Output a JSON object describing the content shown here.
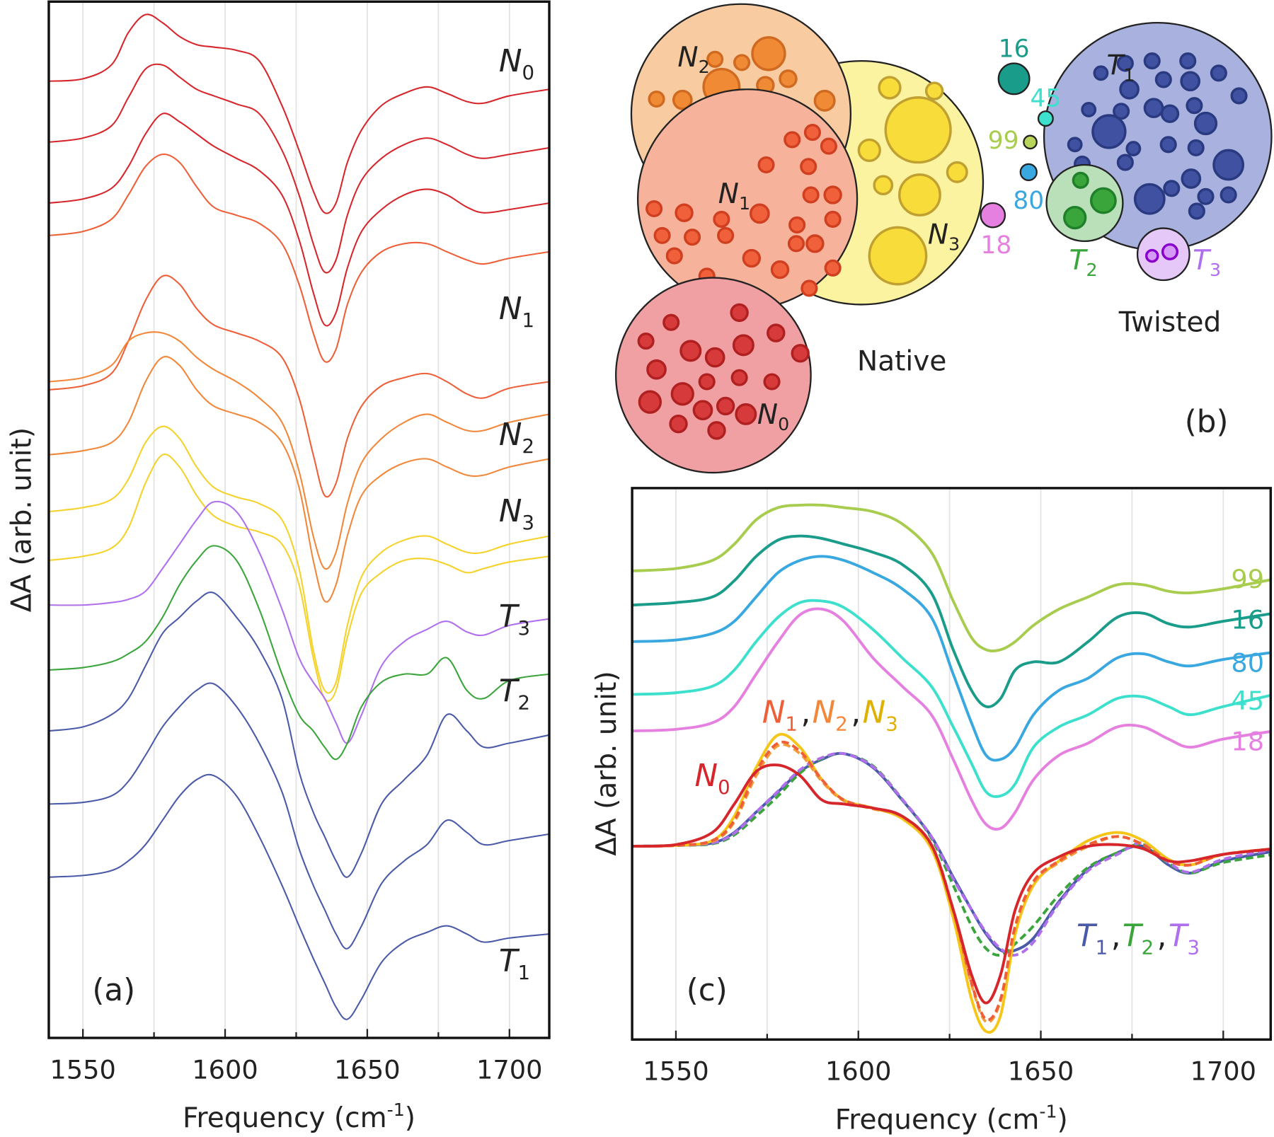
{
  "chart_data": [
    {
      "type": "line",
      "panel_label": "(a)",
      "ylabel": "ΔA (arb. unit)",
      "xlabel": [
        "Frequency (cm",
        "-1",
        ")"
      ],
      "xlim": [
        1538,
        1714
      ],
      "xticks": [
        1550,
        1600,
        1650,
        1700
      ],
      "minor_xticks": [
        1575,
        1625,
        1675
      ],
      "ylim": [
        0,
        1276
      ],
      "grid": true,
      "x": [
        1538,
        1550,
        1560,
        1566,
        1572,
        1578,
        1584,
        1590,
        1596,
        1604,
        1612,
        1620,
        1626,
        1631,
        1635,
        1639,
        1643,
        1648,
        1655,
        1663,
        1671,
        1678,
        1685,
        1691,
        1700,
        1714
      ],
      "series": [
        {
          "color": "#d7262b",
          "values": [
            1178,
            1181,
            1198,
            1238,
            1260,
            1250,
            1233,
            1223,
            1220,
            1216,
            1203,
            1148,
            1093,
            1043,
            1016,
            1028,
            1078,
            1118,
            1148,
            1163,
            1171,
            1163,
            1153,
            1151,
            1160,
            1168
          ]
        },
        {
          "color": "#d7262b",
          "values": [
            1103,
            1108,
            1123,
            1158,
            1193,
            1198,
            1183,
            1168,
            1160,
            1150,
            1138,
            1093,
            1038,
            978,
            943,
            958,
            1013,
            1056,
            1083,
            1100,
            1108,
            1100,
            1088,
            1083,
            1088,
            1096
          ]
        },
        {
          "color": "#d7262b",
          "values": [
            1028,
            1033,
            1046,
            1073,
            1113,
            1138,
            1128,
            1113,
            1098,
            1083,
            1068,
            1038,
            983,
            918,
            878,
            893,
            948,
            993,
            1020,
            1038,
            1045,
            1038,
            1023,
            1016,
            1020,
            1028
          ]
        },
        {
          "color": "#ee5f38",
          "values": [
            988,
            993,
            1008,
            1038,
            1073,
            1088,
            1078,
            1048,
            1023,
            1013,
            1003,
            978,
            928,
            868,
            833,
            848,
            903,
            943,
            968,
            978,
            978,
            968,
            958,
            953,
            960,
            968
          ]
        },
        {
          "color": "#ee5f38",
          "values": [
            798,
            803,
            818,
            858,
            908,
            938,
            928,
            898,
            878,
            868,
            858,
            838,
            788,
            718,
            668,
            683,
            738,
            778,
            803,
            813,
            818,
            808,
            793,
            788,
            800,
            808
          ]
        },
        {
          "color": "#f2873a",
          "values": [
            808,
            813,
            828,
            858,
            868,
            868,
            858,
            838,
            823,
            808,
            788,
            758,
            698,
            618,
            578,
            598,
            658,
            708,
            738,
            758,
            768,
            758,
            748,
            748,
            758,
            768
          ]
        },
        {
          "color": "#f2873a",
          "values": [
            718,
            723,
            733,
            758,
            808,
            838,
            828,
            798,
            778,
            768,
            758,
            733,
            678,
            588,
            538,
            558,
            618,
            668,
            693,
            708,
            713,
            703,
            693,
            693,
            703,
            713
          ]
        },
        {
          "color": "#f5d22a",
          "values": [
            648,
            653,
            663,
            688,
            733,
            753,
            738,
            703,
            678,
            666,
            658,
            638,
            578,
            478,
            428,
            438,
            508,
            568,
            598,
            613,
            618,
            608,
            598,
            598,
            608,
            618
          ]
        },
        {
          "color": "#f5d22a",
          "values": [
            588,
            593,
            603,
            628,
            683,
            718,
            703,
            668,
            643,
            630,
            623,
            608,
            558,
            468,
            418,
            428,
            493,
            548,
            573,
            588,
            590,
            583,
            573,
            578,
            586,
            593
          ]
        },
        {
          "color": "#b070ee",
          "values": [
            533,
            533,
            536,
            540,
            550,
            578,
            608,
            638,
            660,
            648,
            598,
            528,
            468,
            438,
            418,
            388,
            363,
            398,
            458,
            488,
            503,
            513,
            500,
            496,
            508,
            516
          ]
        },
        {
          "color": "#3aa53a",
          "values": [
            453,
            456,
            463,
            473,
            488,
            518,
            558,
            588,
            606,
            588,
            528,
            448,
            398,
            378,
            358,
            343,
            363,
            408,
            438,
            448,
            448,
            468,
            428,
            418,
            440,
            448
          ]
        },
        {
          "color": "#4a5aa8",
          "values": [
            378,
            383,
            398,
            418,
            458,
            498,
            518,
            538,
            548,
            518,
            478,
            418,
            328,
            278,
            248,
            218,
            198,
            228,
            288,
            318,
            348,
            398,
            378,
            358,
            363,
            373
          ]
        },
        {
          "color": "#4a5aa8",
          "values": [
            288,
            290,
            298,
            316,
            348,
            383,
            408,
            428,
            436,
            408,
            363,
            303,
            233,
            188,
            158,
            128,
            110,
            138,
            190,
            218,
            238,
            268,
            253,
            238,
            243,
            251
          ]
        },
        {
          "color": "#4a5aa8",
          "values": [
            198,
            200,
            206,
            218,
            238,
            268,
            298,
            318,
            323,
            298,
            248,
            188,
            138,
            98,
            68,
            38,
            23,
            48,
            93,
            118,
            130,
            138,
            128,
            118,
            123,
            128
          ]
        }
      ],
      "annotations": [
        {
          "items": [
            {
              "text": "N",
              "subscript": "0"
            }
          ]
        },
        {
          "items": [
            {
              "text": "N",
              "subscript": "1"
            }
          ]
        },
        {
          "items": [
            {
              "text": "N",
              "subscript": "2"
            }
          ]
        },
        {
          "items": [
            {
              "text": "N",
              "subscript": "3"
            }
          ]
        },
        {
          "items": [
            {
              "text": "T",
              "subscript": "3"
            }
          ]
        },
        {
          "items": [
            {
              "text": "T",
              "subscript": "2"
            }
          ]
        },
        {
          "items": [
            {
              "text": "T",
              "subscript": "1"
            }
          ]
        }
      ]
    },
    {
      "type": "line",
      "panel_label": "(c)",
      "ylabel": "ΔA (arb. unit)",
      "xlabel": [
        "Frequency (cm",
        "-1",
        ")"
      ],
      "xlim": [
        1538,
        1713
      ],
      "xticks": [
        1550,
        1600,
        1650,
        1700
      ],
      "minor_xticks": [
        1575,
        1625,
        1675
      ],
      "ylim": [
        0,
        679
      ],
      "grid": true,
      "x": [
        1538,
        1550,
        1560,
        1566,
        1572,
        1578,
        1584,
        1590,
        1596,
        1604,
        1612,
        1620,
        1626,
        1631,
        1635,
        1639,
        1643,
        1648,
        1655,
        1663,
        1671,
        1678,
        1685,
        1691,
        1700,
        1714
      ],
      "series": [
        {
          "name": "99",
          "color": "#a8cc4e",
          "values": [
            577,
            580,
            590,
            610,
            640,
            655,
            658,
            658,
            655,
            650,
            635,
            600,
            540,
            495,
            480,
            480,
            490,
            510,
            530,
            545,
            560,
            560,
            552,
            550,
            555,
            567
          ]
        },
        {
          "name": "16",
          "color": "#1a9c8a",
          "values": [
            535,
            538,
            545,
            565,
            595,
            615,
            620,
            617,
            610,
            600,
            585,
            550,
            480,
            430,
            410,
            420,
            455,
            465,
            465,
            490,
            520,
            525,
            512,
            508,
            515,
            525
          ]
        },
        {
          "name": "80",
          "color": "#3aa8e0",
          "values": [
            490,
            492,
            500,
            515,
            545,
            575,
            590,
            595,
            590,
            575,
            555,
            520,
            450,
            390,
            350,
            345,
            360,
            400,
            430,
            445,
            470,
            475,
            465,
            460,
            468,
            477
          ]
        },
        {
          "name": "45",
          "color": "#3de0cc",
          "values": [
            425,
            427,
            435,
            455,
            490,
            520,
            538,
            540,
            532,
            505,
            470,
            435,
            385,
            340,
            305,
            300,
            315,
            360,
            385,
            400,
            420,
            422,
            410,
            400,
            410,
            425
          ]
        },
        {
          "name": "18",
          "color": "#e680e0",
          "values": [
            380,
            382,
            390,
            410,
            450,
            490,
            523,
            530,
            515,
            470,
            435,
            400,
            345,
            295,
            265,
            260,
            280,
            320,
            350,
            365,
            385,
            385,
            370,
            360,
            370,
            380
          ]
        },
        {
          "color": "#4a5aa8",
          "values": [
            238,
            239,
            242,
            255,
            280,
            305,
            330,
            345,
            352,
            335,
            295,
            250,
            200,
            160,
            130,
            110,
            110,
            125,
            170,
            210,
            230,
            238,
            215,
            205,
            220,
            232
          ]
        },
        {
          "color": "#3aa53a",
          "dash": true,
          "values": [
            238,
            239,
            241,
            252,
            275,
            300,
            328,
            346,
            352,
            337,
            296,
            248,
            190,
            140,
            112,
            104,
            118,
            140,
            178,
            212,
            230,
            240,
            217,
            205,
            218,
            228
          ]
        },
        {
          "color": "#b070ee",
          "dash": true,
          "values": [
            238,
            239,
            242,
            254,
            280,
            306,
            332,
            347,
            352,
            336,
            296,
            250,
            198,
            160,
            132,
            112,
            104,
            120,
            168,
            208,
            228,
            242,
            218,
            206,
            222,
            234
          ]
        },
        {
          "color": "#f5c518",
          "values": [
            238,
            239,
            245,
            275,
            335,
            375,
            360,
            320,
            295,
            285,
            272,
            235,
            150,
            50,
            10,
            30,
            130,
            190,
            220,
            245,
            255,
            245,
            222,
            215,
            228,
            235
          ]
        },
        {
          "color": "#f39c3a",
          "dash": true,
          "values": [
            238,
            239,
            244,
            268,
            325,
            362,
            352,
            318,
            294,
            284,
            274,
            238,
            158,
            68,
            22,
            48,
            138,
            193,
            218,
            238,
            250,
            240,
            220,
            215,
            228,
            235
          ]
        },
        {
          "color": "#ee5f38",
          "dash": true,
          "values": [
            238,
            239,
            245,
            270,
            330,
            365,
            355,
            320,
            295,
            285,
            275,
            240,
            160,
            70,
            25,
            50,
            140,
            195,
            220,
            240,
            250,
            240,
            220,
            215,
            228,
            235
          ]
        },
        {
          "color": "#d7262b",
          "values": [
            238,
            240,
            255,
            290,
            330,
            338,
            325,
            295,
            290,
            285,
            275,
            240,
            160,
            80,
            45,
            80,
            160,
            205,
            225,
            238,
            240,
            235,
            220,
            220,
            228,
            235
          ]
        }
      ],
      "annotations": [
        {
          "items": [
            {
              "text": "N",
              "subscript": "0",
              "color": "#d7262b"
            }
          ]
        },
        {
          "items": [
            {
              "text": "N",
              "subscript": "1",
              "color": "#ee5f38"
            },
            {
              "text": "N",
              "subscript": "2",
              "color": "#f2873a"
            },
            {
              "text": "N",
              "subscript": "3",
              "color": "#e0b000"
            }
          ],
          "separator": ","
        },
        {
          "items": [
            {
              "text": "T",
              "subscript": "1",
              "color": "#4a5aa8"
            },
            {
              "text": "T",
              "subscript": "2",
              "color": "#3aa53a"
            },
            {
              "text": "T",
              "subscript": "3",
              "color": "#b070ee"
            }
          ],
          "separator": ","
        }
      ]
    }
  ],
  "diagram": {
    "groups": [
      {
        "text": "N",
        "subscript": "0"
      },
      {
        "text": "N",
        "subscript": "1"
      },
      {
        "text": "N",
        "subscript": "2"
      },
      {
        "text": "N",
        "subscript": "3"
      },
      {
        "text": "T",
        "subscript": "1"
      },
      {
        "text": "T",
        "subscript": "2"
      },
      {
        "text": "T",
        "subscript": "3"
      }
    ],
    "clusters": [
      "16",
      "45",
      "99",
      "80",
      "18"
    ],
    "native_label": "Native",
    "twisted_label": "Twisted",
    "panel_label": "(b)"
  }
}
